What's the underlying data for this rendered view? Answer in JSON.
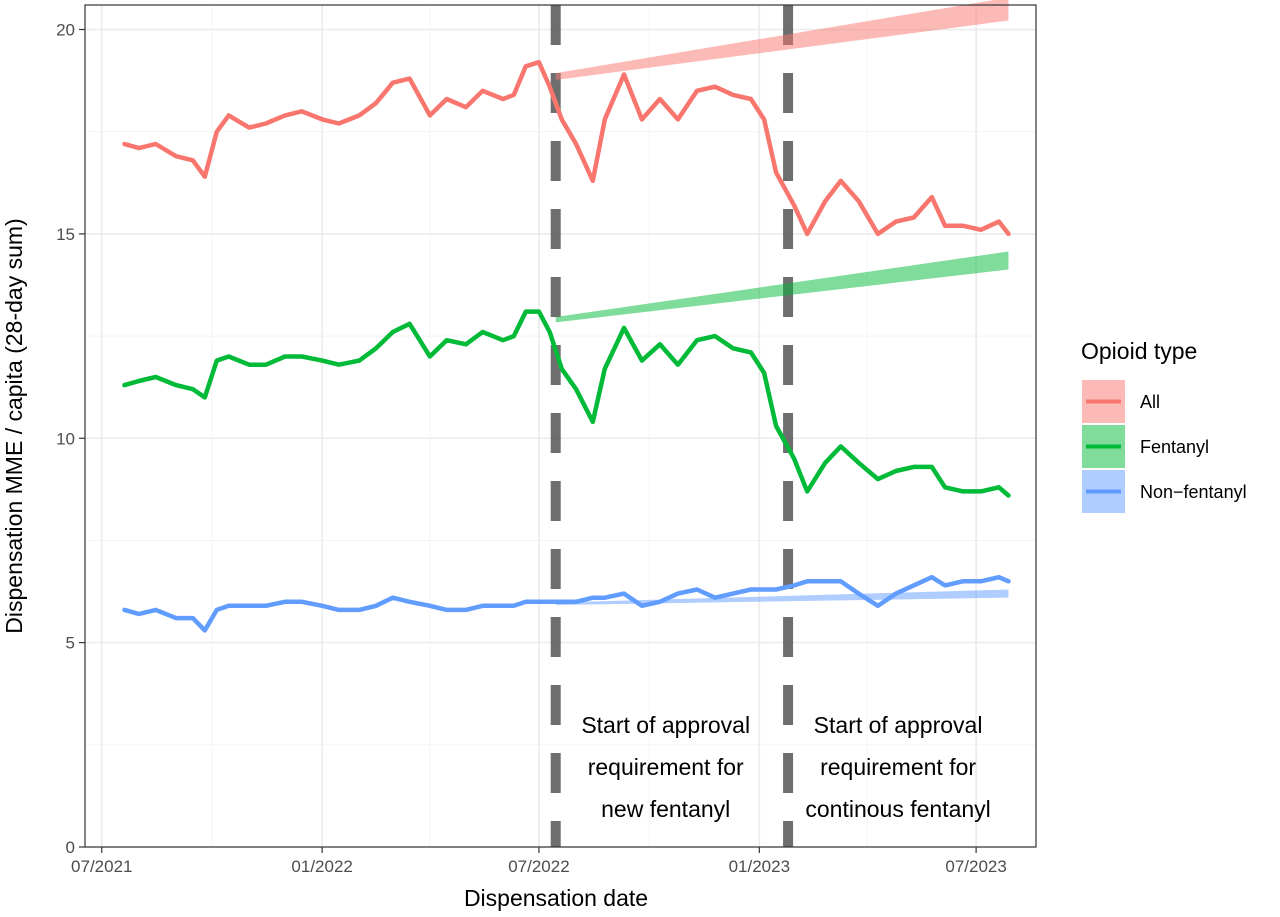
{
  "chart_data": {
    "type": "line",
    "xlabel": "Dispensation date",
    "ylabel": "Dispensation MME / capita (28-day sum)",
    "xlim": [
      "2021-06-17",
      "2023-08-20"
    ],
    "ylim": [
      0,
      20.6
    ],
    "x_ticks": [
      {
        "date": "2021-07-01",
        "label": "07/2021"
      },
      {
        "date": "2022-01-01",
        "label": "01/2022"
      },
      {
        "date": "2022-07-01",
        "label": "07/2022"
      },
      {
        "date": "2023-01-01",
        "label": "01/2023"
      },
      {
        "date": "2023-07-01",
        "label": "07/2023"
      }
    ],
    "y_ticks": [
      0,
      5,
      10,
      15,
      20
    ],
    "grid": true,
    "legend": {
      "title": "Opioid type",
      "placement": "right",
      "entries": [
        "All",
        "Fentanyl",
        "Non−fentanyl"
      ]
    },
    "series": [
      {
        "name": "All",
        "color": "#F8766D",
        "points": [
          [
            "2021-07-20",
            17.2
          ],
          [
            "2021-08-01",
            17.1
          ],
          [
            "2021-08-15",
            17.2
          ],
          [
            "2021-09-01",
            16.9
          ],
          [
            "2021-09-15",
            16.8
          ],
          [
            "2021-09-25",
            16.4
          ],
          [
            "2021-10-05",
            17.5
          ],
          [
            "2021-10-15",
            17.9
          ],
          [
            "2021-11-01",
            17.6
          ],
          [
            "2021-11-15",
            17.7
          ],
          [
            "2021-12-01",
            17.9
          ],
          [
            "2021-12-15",
            18.0
          ],
          [
            "2022-01-01",
            17.8
          ],
          [
            "2022-01-15",
            17.7
          ],
          [
            "2022-02-01",
            17.9
          ],
          [
            "2022-02-15",
            18.2
          ],
          [
            "2022-03-01",
            18.7
          ],
          [
            "2022-03-15",
            18.8
          ],
          [
            "2022-04-01",
            17.9
          ],
          [
            "2022-04-15",
            18.3
          ],
          [
            "2022-05-01",
            18.1
          ],
          [
            "2022-05-15",
            18.5
          ],
          [
            "2022-06-01",
            18.3
          ],
          [
            "2022-06-10",
            18.4
          ],
          [
            "2022-06-20",
            19.1
          ],
          [
            "2022-07-01",
            19.2
          ],
          [
            "2022-07-10",
            18.6
          ],
          [
            "2022-07-20",
            17.8
          ],
          [
            "2022-08-01",
            17.2
          ],
          [
            "2022-08-15",
            16.3
          ],
          [
            "2022-08-25",
            17.8
          ],
          [
            "2022-09-10",
            18.9
          ],
          [
            "2022-09-25",
            17.8
          ],
          [
            "2022-10-10",
            18.3
          ],
          [
            "2022-10-25",
            17.8
          ],
          [
            "2022-11-10",
            18.5
          ],
          [
            "2022-11-25",
            18.6
          ],
          [
            "2022-12-10",
            18.4
          ],
          [
            "2022-12-25",
            18.3
          ],
          [
            "2023-01-05",
            17.8
          ],
          [
            "2023-01-15",
            16.5
          ],
          [
            "2023-01-30",
            15.7
          ],
          [
            "2023-02-10",
            15.0
          ],
          [
            "2023-02-25",
            15.8
          ],
          [
            "2023-03-10",
            16.3
          ],
          [
            "2023-03-25",
            15.8
          ],
          [
            "2023-04-10",
            15.0
          ],
          [
            "2023-04-25",
            15.3
          ],
          [
            "2023-05-10",
            15.4
          ],
          [
            "2023-05-25",
            15.9
          ],
          [
            "2023-06-05",
            15.2
          ],
          [
            "2023-06-20",
            15.2
          ],
          [
            "2023-07-05",
            15.1
          ],
          [
            "2023-07-20",
            15.3
          ],
          [
            "2023-07-28",
            15.0
          ]
        ],
        "trend": [
          [
            "2022-07-15",
            18.85
          ],
          [
            "2023-07-28",
            20.5
          ]
        ],
        "trend_band": 0.28
      },
      {
        "name": "Fentanyl",
        "color": "#00BA38",
        "points": [
          [
            "2021-07-20",
            11.3
          ],
          [
            "2021-08-01",
            11.4
          ],
          [
            "2021-08-15",
            11.5
          ],
          [
            "2021-09-01",
            11.3
          ],
          [
            "2021-09-15",
            11.2
          ],
          [
            "2021-09-25",
            11.0
          ],
          [
            "2021-10-05",
            11.9
          ],
          [
            "2021-10-15",
            12.0
          ],
          [
            "2021-11-01",
            11.8
          ],
          [
            "2021-11-15",
            11.8
          ],
          [
            "2021-12-01",
            12.0
          ],
          [
            "2021-12-15",
            12.0
          ],
          [
            "2022-01-01",
            11.9
          ],
          [
            "2022-01-15",
            11.8
          ],
          [
            "2022-02-01",
            11.9
          ],
          [
            "2022-02-15",
            12.2
          ],
          [
            "2022-03-01",
            12.6
          ],
          [
            "2022-03-15",
            12.8
          ],
          [
            "2022-04-01",
            12.0
          ],
          [
            "2022-04-15",
            12.4
          ],
          [
            "2022-05-01",
            12.3
          ],
          [
            "2022-05-15",
            12.6
          ],
          [
            "2022-06-01",
            12.4
          ],
          [
            "2022-06-10",
            12.5
          ],
          [
            "2022-06-20",
            13.1
          ],
          [
            "2022-07-01",
            13.1
          ],
          [
            "2022-07-10",
            12.6
          ],
          [
            "2022-07-20",
            11.7
          ],
          [
            "2022-08-01",
            11.2
          ],
          [
            "2022-08-15",
            10.4
          ],
          [
            "2022-08-25",
            11.7
          ],
          [
            "2022-09-10",
            12.7
          ],
          [
            "2022-09-25",
            11.9
          ],
          [
            "2022-10-10",
            12.3
          ],
          [
            "2022-10-25",
            11.8
          ],
          [
            "2022-11-10",
            12.4
          ],
          [
            "2022-11-25",
            12.5
          ],
          [
            "2022-12-10",
            12.2
          ],
          [
            "2022-12-25",
            12.1
          ],
          [
            "2023-01-05",
            11.6
          ],
          [
            "2023-01-15",
            10.3
          ],
          [
            "2023-01-30",
            9.5
          ],
          [
            "2023-02-10",
            8.7
          ],
          [
            "2023-02-25",
            9.4
          ],
          [
            "2023-03-10",
            9.8
          ],
          [
            "2023-03-25",
            9.4
          ],
          [
            "2023-04-10",
            9.0
          ],
          [
            "2023-04-25",
            9.2
          ],
          [
            "2023-05-10",
            9.3
          ],
          [
            "2023-05-25",
            9.3
          ],
          [
            "2023-06-05",
            8.8
          ],
          [
            "2023-06-20",
            8.7
          ],
          [
            "2023-07-05",
            8.7
          ],
          [
            "2023-07-20",
            8.8
          ],
          [
            "2023-07-28",
            8.6
          ]
        ],
        "trend": [
          [
            "2022-07-15",
            12.9
          ],
          [
            "2023-07-28",
            14.35
          ]
        ],
        "trend_band": 0.22
      },
      {
        "name": "Non−fentanyl",
        "color": "#619CFF",
        "points": [
          [
            "2021-07-20",
            5.8
          ],
          [
            "2021-08-01",
            5.7
          ],
          [
            "2021-08-15",
            5.8
          ],
          [
            "2021-09-01",
            5.6
          ],
          [
            "2021-09-15",
            5.6
          ],
          [
            "2021-09-25",
            5.3
          ],
          [
            "2021-10-05",
            5.8
          ],
          [
            "2021-10-15",
            5.9
          ],
          [
            "2021-11-01",
            5.9
          ],
          [
            "2021-11-15",
            5.9
          ],
          [
            "2021-12-01",
            6.0
          ],
          [
            "2021-12-15",
            6.0
          ],
          [
            "2022-01-01",
            5.9
          ],
          [
            "2022-01-15",
            5.8
          ],
          [
            "2022-02-01",
            5.8
          ],
          [
            "2022-02-15",
            5.9
          ],
          [
            "2022-03-01",
            6.1
          ],
          [
            "2022-03-15",
            6.0
          ],
          [
            "2022-04-01",
            5.9
          ],
          [
            "2022-04-15",
            5.8
          ],
          [
            "2022-05-01",
            5.8
          ],
          [
            "2022-05-15",
            5.9
          ],
          [
            "2022-06-01",
            5.9
          ],
          [
            "2022-06-10",
            5.9
          ],
          [
            "2022-06-20",
            6.0
          ],
          [
            "2022-07-01",
            6.0
          ],
          [
            "2022-07-10",
            6.0
          ],
          [
            "2022-07-20",
            6.0
          ],
          [
            "2022-08-01",
            6.0
          ],
          [
            "2022-08-15",
            6.1
          ],
          [
            "2022-08-25",
            6.1
          ],
          [
            "2022-09-10",
            6.2
          ],
          [
            "2022-09-25",
            5.9
          ],
          [
            "2022-10-10",
            6.0
          ],
          [
            "2022-10-25",
            6.2
          ],
          [
            "2022-11-10",
            6.3
          ],
          [
            "2022-11-25",
            6.1
          ],
          [
            "2022-12-10",
            6.2
          ],
          [
            "2022-12-25",
            6.3
          ],
          [
            "2023-01-05",
            6.3
          ],
          [
            "2023-01-15",
            6.3
          ],
          [
            "2023-01-30",
            6.4
          ],
          [
            "2023-02-10",
            6.5
          ],
          [
            "2023-02-25",
            6.5
          ],
          [
            "2023-03-10",
            6.5
          ],
          [
            "2023-03-25",
            6.2
          ],
          [
            "2023-04-10",
            5.9
          ],
          [
            "2023-04-25",
            6.2
          ],
          [
            "2023-05-10",
            6.4
          ],
          [
            "2023-05-25",
            6.6
          ],
          [
            "2023-06-05",
            6.4
          ],
          [
            "2023-06-20",
            6.5
          ],
          [
            "2023-07-05",
            6.5
          ],
          [
            "2023-07-20",
            6.6
          ],
          [
            "2023-07-28",
            6.5
          ]
        ],
        "trend": [
          [
            "2022-07-15",
            5.95
          ],
          [
            "2023-07-28",
            6.2
          ]
        ],
        "trend_band": 0.1
      }
    ],
    "vlines": [
      {
        "date": "2022-07-15",
        "label_lines": [
          "Start of approval",
          "requirement for",
          "new fentanyl"
        ]
      },
      {
        "date": "2023-01-25",
        "label_lines": [
          "Start of approval",
          "requirement for",
          "continous fentanyl"
        ]
      }
    ]
  }
}
